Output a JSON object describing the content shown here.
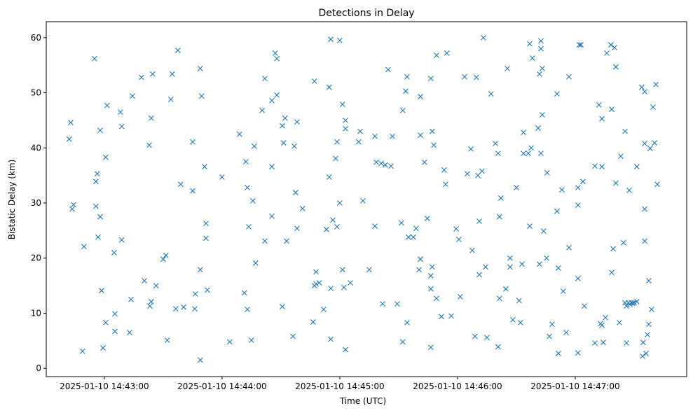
{
  "chart_data": {
    "type": "scatter",
    "title": "Detections in Delay",
    "xlabel": "Time (UTC)",
    "ylabel": "Bistatic Delay (km)",
    "x_units": "seconds after 2025-01-10 14:43:00 UTC",
    "xlim": [
      -29.6,
      296.8
    ],
    "ylim": [
      -1.5,
      62.9
    ],
    "grid": false,
    "marker": "x",
    "color": "#1f77b4",
    "xticks": [
      {
        "value": 0,
        "label": "2025-01-10 14:43:00"
      },
      {
        "value": 60,
        "label": "2025-01-10 14:44:00"
      },
      {
        "value": 120,
        "label": "2025-01-10 14:45:00"
      },
      {
        "value": 180,
        "label": "2025-01-10 14:46:00"
      },
      {
        "value": 240,
        "label": "2025-01-10 14:47:00"
      }
    ],
    "yticks": [
      {
        "value": 0,
        "label": "0"
      },
      {
        "value": 10,
        "label": "10"
      },
      {
        "value": 20,
        "label": "20"
      },
      {
        "value": 30,
        "label": "30"
      },
      {
        "value": 40,
        "label": "40"
      },
      {
        "value": 50,
        "label": "50"
      },
      {
        "value": 60,
        "label": "60"
      }
    ],
    "points": [
      [
        -17.9,
        41.6
      ],
      [
        -17.1,
        44.6
      ],
      [
        -16.4,
        28.9
      ],
      [
        -15.7,
        29.7
      ],
      [
        -11.1,
        3.1
      ],
      [
        -10.4,
        22.1
      ],
      [
        -5,
        56.2
      ],
      [
        -4.3,
        29.4
      ],
      [
        -4.3,
        33.9
      ],
      [
        -3.6,
        35.3
      ],
      [
        -3.2,
        23.8
      ],
      [
        -2.1,
        43.2
      ],
      [
        -2.1,
        27.5
      ],
      [
        -1.4,
        14.1
      ],
      [
        -0.7,
        3.7
      ],
      [
        0.7,
        8.3
      ],
      [
        0.7,
        38.3
      ],
      [
        1.4,
        47.7
      ],
      [
        5,
        21.0
      ],
      [
        5.4,
        9.9
      ],
      [
        5.4,
        6.7
      ],
      [
        8.2,
        46.5
      ],
      [
        8.9,
        43.9
      ],
      [
        8.9,
        23.3
      ],
      [
        12.9,
        6.5
      ],
      [
        13.6,
        12.5
      ],
      [
        14.3,
        49.4
      ],
      [
        18.9,
        52.8
      ],
      [
        20.4,
        15.9
      ],
      [
        22.9,
        40.5
      ],
      [
        23.2,
        11.3
      ],
      [
        23.9,
        12.1
      ],
      [
        23.9,
        45.4
      ],
      [
        24.6,
        53.4
      ],
      [
        26.4,
        15.0
      ],
      [
        30,
        19.8
      ],
      [
        31.4,
        20.5
      ],
      [
        32.1,
        5.1
      ],
      [
        33.9,
        48.8
      ],
      [
        34.6,
        53.4
      ],
      [
        36.4,
        10.8
      ],
      [
        37.5,
        57.7
      ],
      [
        38.9,
        33.4
      ],
      [
        40.4,
        11.1
      ],
      [
        45,
        41.1
      ],
      [
        45,
        32.2
      ],
      [
        46.1,
        10.8
      ],
      [
        46.4,
        13.5
      ],
      [
        48.9,
        54.4
      ],
      [
        48.9,
        17.9
      ],
      [
        48.9,
        1.5
      ],
      [
        49.6,
        49.4
      ],
      [
        51.1,
        36.6
      ],
      [
        51.8,
        26.3
      ],
      [
        51.8,
        23.6
      ],
      [
        52.5,
        14.2
      ],
      [
        60,
        34.7
      ],
      [
        63.9,
        4.8
      ],
      [
        68.9,
        42.5
      ],
      [
        71.4,
        13.7
      ],
      [
        72.1,
        37.5
      ],
      [
        72.9,
        32.8
      ],
      [
        72.9,
        10.7
      ],
      [
        73.6,
        25.7
      ],
      [
        75,
        5.1
      ],
      [
        75.7,
        30.4
      ],
      [
        76.4,
        40.3
      ],
      [
        77.1,
        19.1
      ],
      [
        80.4,
        46.8
      ],
      [
        81.8,
        52.6
      ],
      [
        81.8,
        23.1
      ],
      [
        85.4,
        36.6
      ],
      [
        85.4,
        27.6
      ],
      [
        85.4,
        48.6
      ],
      [
        87.1,
        57.2
      ],
      [
        87.9,
        56.2
      ],
      [
        87.9,
        49.6
      ],
      [
        90.7,
        44.0
      ],
      [
        90.7,
        11.2
      ],
      [
        91.4,
        40.9
      ],
      [
        92.1,
        45.4
      ],
      [
        92.9,
        23.1
      ],
      [
        96.1,
        5.8
      ],
      [
        96.8,
        40.3
      ],
      [
        97.5,
        31.9
      ],
      [
        98.2,
        44.7
      ],
      [
        98.2,
        25.4
      ],
      [
        101,
        29.0
      ],
      [
        106.4,
        8.4
      ],
      [
        107.1,
        52.1
      ],
      [
        107.1,
        15.0
      ],
      [
        107.9,
        17.5
      ],
      [
        107.9,
        15.3
      ],
      [
        109.6,
        15.5
      ],
      [
        111.8,
        10.7
      ],
      [
        113.2,
        25.2
      ],
      [
        114.6,
        51.0
      ],
      [
        114.6,
        34.7
      ],
      [
        115.4,
        59.7
      ],
      [
        115.4,
        5.3
      ],
      [
        115.4,
        14.5
      ],
      [
        116.4,
        26.9
      ],
      [
        117.9,
        38.1
      ],
      [
        118.6,
        25.7
      ],
      [
        118.6,
        41.1
      ],
      [
        120,
        59.5
      ],
      [
        120,
        30.0
      ],
      [
        121.4,
        47.9
      ],
      [
        121.4,
        17.9
      ],
      [
        122.1,
        14.7
      ],
      [
        122.9,
        45.0
      ],
      [
        122.9,
        43.5
      ],
      [
        122.9,
        3.4
      ],
      [
        125.4,
        15.5
      ],
      [
        129.6,
        41.1
      ],
      [
        130.4,
        43.0
      ],
      [
        131.8,
        30.4
      ],
      [
        135,
        17.9
      ],
      [
        137.9,
        42.1
      ],
      [
        137.9,
        25.8
      ],
      [
        138.6,
        37.4
      ],
      [
        141.1,
        37.2
      ],
      [
        141.8,
        11.7
      ],
      [
        143.2,
        36.9
      ],
      [
        144.6,
        54.2
      ],
      [
        146.1,
        36.7
      ],
      [
        146.8,
        42.1
      ],
      [
        149.3,
        11.7
      ],
      [
        151.4,
        26.4
      ],
      [
        152.1,
        46.8
      ],
      [
        152.1,
        4.8
      ],
      [
        153.6,
        50.3
      ],
      [
        154.3,
        52.9
      ],
      [
        154.3,
        8.3
      ],
      [
        155,
        23.8
      ],
      [
        157.5,
        23.8
      ],
      [
        158.9,
        25.4
      ],
      [
        160.4,
        17.9
      ],
      [
        161.1,
        49.3
      ],
      [
        161.1,
        42.3
      ],
      [
        161.1,
        19.8
      ],
      [
        163.2,
        37.4
      ],
      [
        164.6,
        27.2
      ],
      [
        166.4,
        52.6
      ],
      [
        166.4,
        16.8
      ],
      [
        166.4,
        14.4
      ],
      [
        166.4,
        3.8
      ],
      [
        167.1,
        43.0
      ],
      [
        167.1,
        18.4
      ],
      [
        167.9,
        40.5
      ],
      [
        169.3,
        12.7
      ],
      [
        169.3,
        56.8
      ],
      [
        171.8,
        9.4
      ],
      [
        173.2,
        36.0
      ],
      [
        173.9,
        33.4
      ],
      [
        174.6,
        57.2
      ],
      [
        176.8,
        9.5
      ],
      [
        179.3,
        25.3
      ],
      [
        180.7,
        23.4
      ],
      [
        181.4,
        13.0
      ],
      [
        183.6,
        52.9
      ],
      [
        185,
        35.3
      ],
      [
        186.8,
        39.8
      ],
      [
        187.5,
        21.4
      ],
      [
        188.9,
        5.8
      ],
      [
        189.6,
        52.8
      ],
      [
        190.4,
        35.0
      ],
      [
        191.1,
        17.0
      ],
      [
        191.1,
        26.7
      ],
      [
        192.5,
        35.8
      ],
      [
        193.2,
        60.0
      ],
      [
        194.3,
        18.4
      ],
      [
        195,
        5.6
      ],
      [
        197.1,
        49.8
      ],
      [
        199.3,
        40.8
      ],
      [
        200.7,
        3.9
      ],
      [
        200.7,
        39.0
      ],
      [
        201.4,
        27.5
      ],
      [
        201.4,
        12.7
      ],
      [
        202.1,
        30.9
      ],
      [
        204.6,
        14.4
      ],
      [
        205.4,
        54.4
      ],
      [
        206.8,
        20.0
      ],
      [
        206.8,
        18.4
      ],
      [
        208.2,
        8.8
      ],
      [
        210,
        32.8
      ],
      [
        211.4,
        12.3
      ],
      [
        212.1,
        8.3
      ],
      [
        212.9,
        18.9
      ],
      [
        213.6,
        42.8
      ],
      [
        213.6,
        39.0
      ],
      [
        216.1,
        39.0
      ],
      [
        216.8,
        58.9
      ],
      [
        216.8,
        25.8
      ],
      [
        217.5,
        40.0
      ],
      [
        218.2,
        56.3
      ],
      [
        221.1,
        43.6
      ],
      [
        221.8,
        53.4
      ],
      [
        221.8,
        18.9
      ],
      [
        222.5,
        59.4
      ],
      [
        222.5,
        58.0
      ],
      [
        222.5,
        39.0
      ],
      [
        223.2,
        54.4
      ],
      [
        223.2,
        46.0
      ],
      [
        223.9,
        24.9
      ],
      [
        225.4,
        20.0
      ],
      [
        225.7,
        35.5
      ],
      [
        226.8,
        5.8
      ],
      [
        228.2,
        8.0
      ],
      [
        230.7,
        49.8
      ],
      [
        230.7,
        28.5
      ],
      [
        231.4,
        18.2
      ],
      [
        231.4,
        2.7
      ],
      [
        233.2,
        32.4
      ],
      [
        233.9,
        14.0
      ],
      [
        235.4,
        6.5
      ],
      [
        236.8,
        52.9
      ],
      [
        236.8,
        21.9
      ],
      [
        241.4,
        32.8
      ],
      [
        241.4,
        16.3
      ],
      [
        241.4,
        29.6
      ],
      [
        241.4,
        2.8
      ],
      [
        242.1,
        58.7
      ],
      [
        242.9,
        58.7
      ],
      [
        243.9,
        33.9
      ],
      [
        244.6,
        11.3
      ],
      [
        250,
        36.7
      ],
      [
        250,
        4.6
      ],
      [
        252.1,
        47.8
      ],
      [
        252.9,
        8.1
      ],
      [
        253.6,
        45.3
      ],
      [
        253.6,
        36.6
      ],
      [
        253.6,
        7.8
      ],
      [
        254.3,
        4.7
      ],
      [
        255.4,
        9.2
      ],
      [
        256.1,
        57.2
      ],
      [
        258.2,
        58.7
      ],
      [
        258.6,
        47.0
      ],
      [
        258.6,
        17.4
      ],
      [
        259.3,
        21.7
      ],
      [
        260,
        58.2
      ],
      [
        260.7,
        54.7
      ],
      [
        260.7,
        33.6
      ],
      [
        262.5,
        8.3
      ],
      [
        263.2,
        38.5
      ],
      [
        264.6,
        22.8
      ],
      [
        265.4,
        43.0
      ],
      [
        265.4,
        11.9
      ],
      [
        266.1,
        4.6
      ],
      [
        266.1,
        11.3
      ],
      [
        267.1,
        11.9
      ],
      [
        267.9,
        11.6
      ],
      [
        268.6,
        11.9
      ],
      [
        269.3,
        11.8
      ],
      [
        270,
        11.9
      ],
      [
        271.4,
        12.1
      ],
      [
        267.5,
        32.3
      ],
      [
        271.4,
        36.6
      ],
      [
        273.9,
        51.0
      ],
      [
        274.6,
        4.7
      ],
      [
        275.4,
        50.2
      ],
      [
        275.4,
        28.9
      ],
      [
        275.4,
        40.8
      ],
      [
        275.4,
        23.1
      ],
      [
        274.3,
        2.2
      ],
      [
        276.1,
        2.7
      ],
      [
        276.8,
        6.1
      ],
      [
        277.5,
        15.9
      ],
      [
        277.5,
        8.0
      ],
      [
        278.2,
        39.9
      ],
      [
        278.9,
        10.7
      ],
      [
        279.6,
        47.4
      ],
      [
        280.4,
        40.9
      ],
      [
        281.1,
        51.5
      ],
      [
        281.8,
        33.4
      ]
    ]
  }
}
